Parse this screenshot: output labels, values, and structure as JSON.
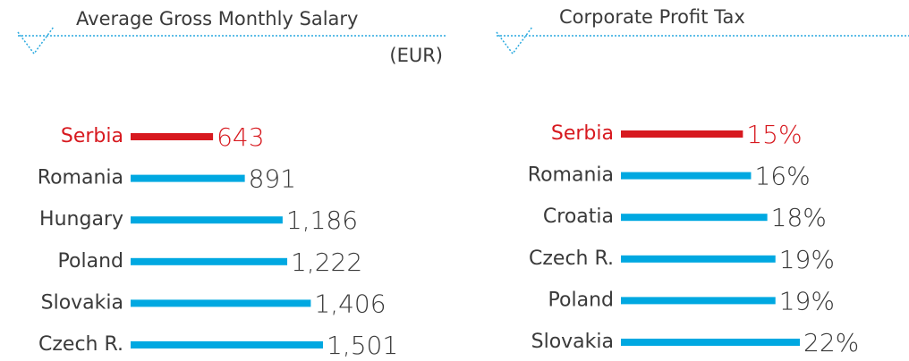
{
  "chart_data": [
    {
      "type": "bar",
      "orientation": "horizontal",
      "title": "Average Gross Monthly Salary",
      "subtitle": "(EUR)",
      "categories": [
        "Serbia",
        "Romania",
        "Hungary",
        "Poland",
        "Slovakia",
        "Czech R."
      ],
      "values": [
        643,
        891,
        1186,
        1222,
        1406,
        1501
      ],
      "value_labels": [
        "643",
        "891",
        "1,186",
        "1,222",
        "1,406",
        "1,501"
      ],
      "colors": [
        "#d7191f",
        "#00a8e1",
        "#00a8e1",
        "#00a8e1",
        "#00a8e1",
        "#00a8e1"
      ]
    },
    {
      "type": "bar",
      "orientation": "horizontal",
      "title": "Corporate Profit Tax",
      "categories": [
        "Serbia",
        "Romania",
        "Croatia",
        "Czech R.",
        "Poland",
        "Slovakia"
      ],
      "values": [
        15,
        16,
        18,
        19,
        19,
        22
      ],
      "value_labels": [
        "15%",
        "16%",
        "18%",
        "19%",
        "19%",
        "22%"
      ],
      "colors": [
        "#d7191f",
        "#00a8e1",
        "#00a8e1",
        "#00a8e1",
        "#00a8e1",
        "#00a8e1"
      ]
    }
  ]
}
